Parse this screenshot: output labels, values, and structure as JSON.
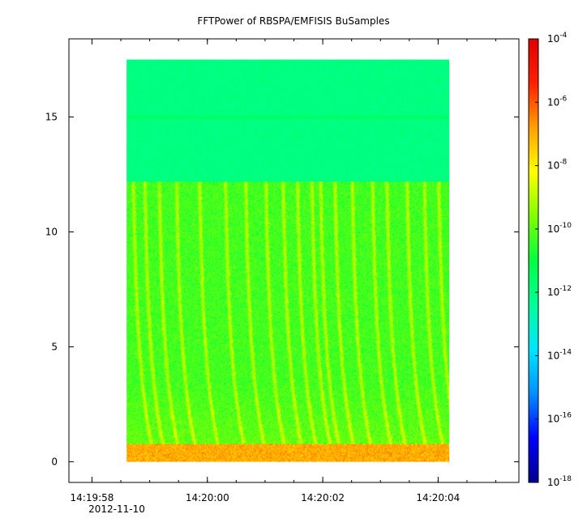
{
  "chart_data": {
    "type": "heatmap",
    "title": "FFTPower of RBSPA/EMFISIS  BuSamples",
    "xlabel": "",
    "ylabel": "",
    "x": {
      "start": "2012-11-10 14:19:58",
      "ticks": [
        "14:19:58",
        "14:20:00",
        "14:20:02",
        "14:20:04"
      ],
      "tick_seconds": [
        0,
        2,
        4,
        6
      ],
      "date_label": "2012-11-10",
      "xlim_seconds": [
        -0.4,
        7.4
      ],
      "data_xlim_seconds": [
        0.6,
        6.2
      ]
    },
    "y": {
      "ticks": [
        "0",
        "5",
        "10",
        "15"
      ],
      "tick_values": [
        0,
        5,
        10,
        15
      ],
      "ylim": [
        -0.9,
        18.4
      ],
      "data_ylim": [
        0,
        17.5
      ]
    },
    "colorbar": {
      "scale": "log",
      "range": [
        1e-18,
        0.0001
      ],
      "ticks": [
        {
          "base": "10",
          "exp": "-4",
          "value": 0.0001
        },
        {
          "base": "10",
          "exp": "-6",
          "value": 1e-06
        },
        {
          "base": "10",
          "exp": "-8",
          "value": 1e-08
        },
        {
          "base": "10",
          "exp": "-10",
          "value": 1e-10
        },
        {
          "base": "10",
          "exp": "-12",
          "value": 1e-12
        },
        {
          "base": "10",
          "exp": "-14",
          "value": 1e-14
        },
        {
          "base": "10",
          "exp": "-16",
          "value": 1e-16
        },
        {
          "base": "10",
          "exp": "-18",
          "value": 1e-18
        }
      ],
      "colors": [
        "#00008b",
        "#0000ff",
        "#0090ff",
        "#00e5ff",
        "#00ff9a",
        "#00ff40",
        "#7fff00",
        "#ffff00",
        "#ffa000",
        "#ff2000",
        "#e00000"
      ]
    },
    "regions": [
      {
        "y_range": [
          0,
          0.4
        ],
        "level": 1e-07,
        "note": "bright band near 0"
      },
      {
        "y_range": [
          0.4,
          12.2
        ],
        "level": 1e-10,
        "note": "chorus-like rising tones"
      },
      {
        "y_range": [
          12.2,
          17.5
        ],
        "level": 1e-12,
        "note": "background"
      },
      {
        "y_range": [
          14.95,
          15.05
        ],
        "level": 1e-11,
        "note": "line at 15"
      }
    ],
    "grid": false
  }
}
